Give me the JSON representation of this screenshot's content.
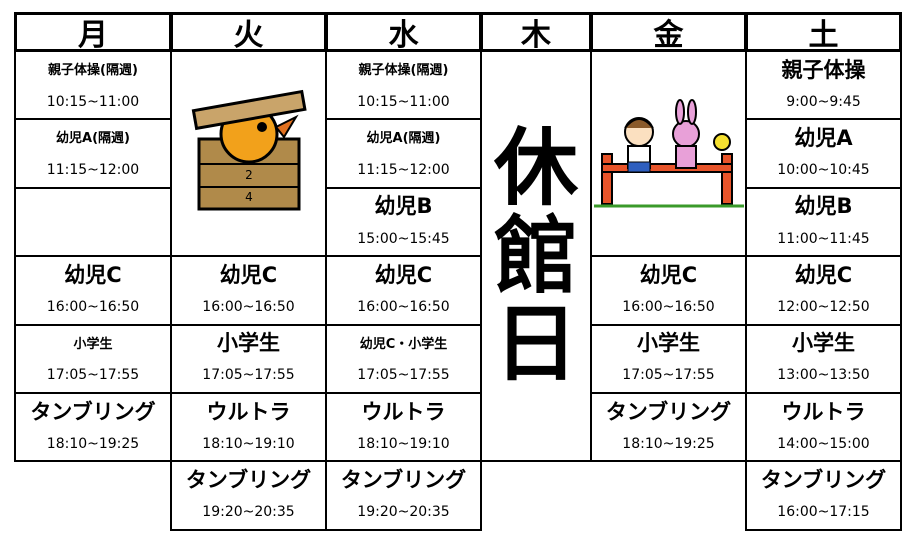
{
  "columns": [
    {
      "day": "月",
      "slots": [
        {
          "name": "親子体操(隔週)",
          "time": "10:15~11:00"
        },
        {
          "name": "幼児A(隔週)",
          "time": "11:15~12:00"
        },
        {
          "name": "幼児C",
          "time": "16:00~16:50"
        },
        {
          "name": "小学生",
          "time": "17:05~17:55"
        },
        {
          "name": "タンブリング",
          "time": "18:10~19:25"
        }
      ]
    },
    {
      "day": "火",
      "slots": [
        {
          "name": "幼児C",
          "time": "16:00~16:50"
        },
        {
          "name": "小学生",
          "time": "17:05~17:55"
        },
        {
          "name": "ウルトラ",
          "time": "18:10~19:10"
        },
        {
          "name": "タンブリング",
          "time": "19:20~20:35"
        }
      ]
    },
    {
      "day": "水",
      "slots": [
        {
          "name": "親子体操(隔週)",
          "time": "10:15~11:00"
        },
        {
          "name": "幼児A(隔週)",
          "time": "11:15~12:00"
        },
        {
          "name": "幼児B",
          "time": "15:00~15:45"
        },
        {
          "name": "幼児C",
          "time": "16:00~16:50"
        },
        {
          "name": "幼児C・小学生",
          "time": "17:05~17:55"
        },
        {
          "name": "ウルトラ",
          "time": "18:10~19:10"
        },
        {
          "name": "タンブリング",
          "time": "19:20~20:35"
        }
      ]
    },
    {
      "day": "木",
      "closed": "休館日"
    },
    {
      "day": "金",
      "slots": [
        {
          "name": "幼児C",
          "time": "16:00~16:50"
        },
        {
          "name": "小学生",
          "time": "17:05~17:55"
        },
        {
          "name": "タンブリング",
          "time": "18:10~19:25"
        }
      ]
    },
    {
      "day": "土",
      "slots": [
        {
          "name": "親子体操",
          "time": "9:00~9:45"
        },
        {
          "name": "幼児A",
          "time": "10:00~10:45"
        },
        {
          "name": "幼児B",
          "time": "11:00~11:45"
        },
        {
          "name": "幼児C",
          "time": "12:00~12:50"
        },
        {
          "name": "小学生",
          "time": "13:00~13:50"
        },
        {
          "name": "ウルトラ",
          "time": "14:00~15:00"
        },
        {
          "name": "タンブリング",
          "time": "16:00~17:15"
        }
      ]
    }
  ]
}
